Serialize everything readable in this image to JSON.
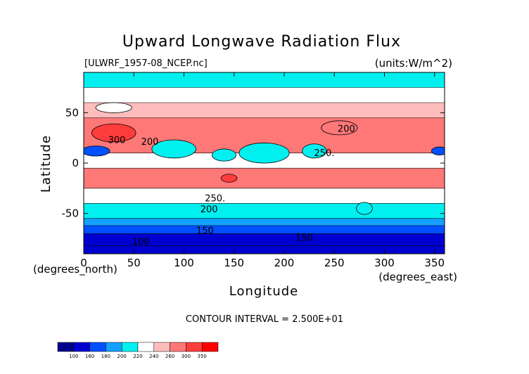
{
  "chart_data": {
    "type": "heatmap",
    "title": "Upward Longwave Radiation Flux",
    "file_label": "[ULWRF_1957-08_NCEP.nc]",
    "units_label": "(units:W/m^2)",
    "xlabel": "Longitude",
    "ylabel": "Latitude",
    "x_unit_label": "(degrees_east)",
    "y_unit_label": "(degrees_north)",
    "xlim": [
      0,
      360
    ],
    "ylim": [
      -90,
      90
    ],
    "x_ticks": [
      0,
      50,
      100,
      150,
      200,
      250,
      300,
      350
    ],
    "y_ticks": [
      -50,
      0,
      50
    ],
    "contour_interval_text": "CONTOUR INTERVAL = 2.500E+01",
    "contour_labels": [
      {
        "text": "300",
        "x": 33,
        "y": 20
      },
      {
        "text": "200",
        "x": 66,
        "y": 18
      },
      {
        "text": "250.",
        "x": 240,
        "y": 7
      },
      {
        "text": "200",
        "x": 262,
        "y": 31
      },
      {
        "text": "250.",
        "x": 131,
        "y": -38
      },
      {
        "text": "200",
        "x": 125,
        "y": -49
      },
      {
        "text": "150",
        "x": 121,
        "y": -70
      },
      {
        "text": "100",
        "x": 57,
        "y": -81
      },
      {
        "text": "150",
        "x": 220,
        "y": -77
      }
    ],
    "colorbar": {
      "levels": [
        "100",
        "160",
        "180",
        "200",
        "220",
        "240",
        "260",
        "300",
        "350"
      ],
      "colors": [
        "#00008c",
        "#0000d0",
        "#0050ff",
        "#14a0ff",
        "#00f0f0",
        "#ffffff",
        "#ffbcbc",
        "#ff7878",
        "#ff3c3c",
        "#ff0000"
      ]
    },
    "field": {
      "lat_bands": [
        {
          "lat_from": -90,
          "lat_to": -82,
          "value": 105
        },
        {
          "lat_from": -82,
          "lat_to": -70,
          "value": 140
        },
        {
          "lat_from": -70,
          "lat_to": -62,
          "value": 170
        },
        {
          "lat_from": -62,
          "lat_to": -55,
          "value": 190
        },
        {
          "lat_from": -55,
          "lat_to": -40,
          "value": 215
        },
        {
          "lat_from": -40,
          "lat_to": -25,
          "value": 235
        },
        {
          "lat_from": -25,
          "lat_to": -5,
          "value": 280
        },
        {
          "lat_from": -5,
          "lat_to": 10,
          "value": 235
        },
        {
          "lat_from": 10,
          "lat_to": 45,
          "value": 285
        },
        {
          "lat_from": 45,
          "lat_to": 60,
          "value": 245
        },
        {
          "lat_from": 60,
          "lat_to": 75,
          "value": 230
        },
        {
          "lat_from": 75,
          "lat_to": 90,
          "value": 205
        }
      ],
      "features": [
        {
          "lon": 30,
          "lat": 30,
          "rlon": 22,
          "rlat": 9,
          "value": 310
        },
        {
          "lon": 12,
          "lat": 12,
          "rlon": 14,
          "rlat": 5,
          "value": 165
        },
        {
          "lon": 90,
          "lat": 14,
          "rlon": 22,
          "rlat": 9,
          "value": 205
        },
        {
          "lon": 140,
          "lat": 8,
          "rlon": 12,
          "rlat": 6,
          "value": 210
        },
        {
          "lon": 180,
          "lat": 10,
          "rlon": 25,
          "rlat": 10,
          "value": 215
        },
        {
          "lon": 230,
          "lat": 12,
          "rlon": 12,
          "rlat": 7,
          "value": 215
        },
        {
          "lon": 145,
          "lat": -15,
          "rlon": 8,
          "rlat": 4,
          "value": 305
        },
        {
          "lon": 255,
          "lat": 35,
          "rlon": 18,
          "rlat": 7,
          "value": 290
        },
        {
          "lon": 355,
          "lat": 12,
          "rlon": 8,
          "rlat": 4,
          "value": 170
        },
        {
          "lon": 30,
          "lat": 55,
          "rlon": 18,
          "rlat": 5,
          "value": 230
        },
        {
          "lon": 280,
          "lat": -45,
          "rlon": 8,
          "rlat": 6,
          "value": 200
        }
      ]
    }
  }
}
